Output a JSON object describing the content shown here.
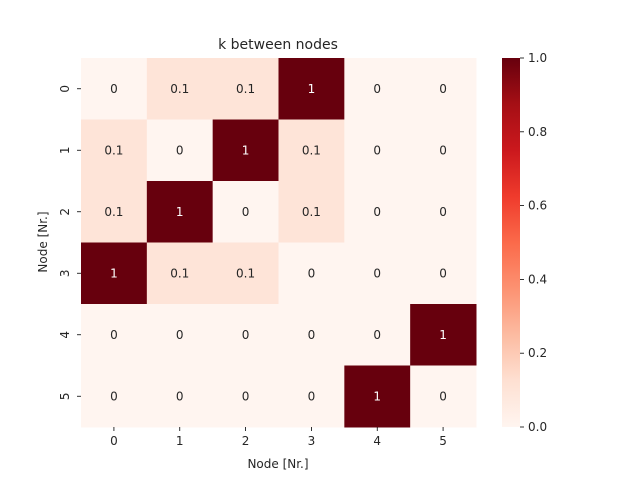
{
  "chart_data": {
    "type": "heatmap",
    "title": "k between nodes",
    "xlabel": "Node [Nr.]",
    "ylabel": "Node [Nr.]",
    "x_categories": [
      "0",
      "1",
      "2",
      "3",
      "4",
      "5"
    ],
    "y_categories": [
      "0",
      "1",
      "2",
      "3",
      "4",
      "5"
    ],
    "values": [
      [
        0,
        0.1,
        0.1,
        1,
        0,
        0
      ],
      [
        0.1,
        0,
        1,
        0.1,
        0,
        0
      ],
      [
        0.1,
        1,
        0,
        0.1,
        0,
        0
      ],
      [
        1,
        0.1,
        0.1,
        0,
        0,
        0
      ],
      [
        0,
        0,
        0,
        0,
        0,
        1
      ],
      [
        0,
        0,
        0,
        0,
        1,
        0
      ]
    ],
    "cell_labels": [
      [
        "0",
        "0.1",
        "0.1",
        "1",
        "0",
        "0"
      ],
      [
        "0.1",
        "0",
        "1",
        "0.1",
        "0",
        "0"
      ],
      [
        "0.1",
        "1",
        "0",
        "0.1",
        "0",
        "0"
      ],
      [
        "1",
        "0.1",
        "0.1",
        "0",
        "0",
        "0"
      ],
      [
        "0",
        "0",
        "0",
        "0",
        "0",
        "1"
      ],
      [
        "0",
        "0",
        "0",
        "0",
        "1",
        "0"
      ]
    ],
    "colormap": "Reds",
    "color_range": [
      0.0,
      1.0
    ],
    "colorbar_ticks": [
      "0.0",
      "0.2",
      "0.4",
      "0.6",
      "0.8",
      "1.0"
    ],
    "colorbar_tick_values": [
      0.0,
      0.2,
      0.4,
      0.6,
      0.8,
      1.0
    ],
    "grid": false
  }
}
